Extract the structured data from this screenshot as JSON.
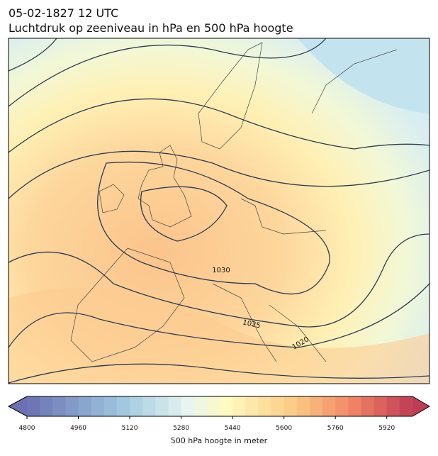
{
  "header": {
    "date": "05-02-1827 12 UTC",
    "title": "Luchtdruk op zeeniveau in hPa en 500 hPa hoogte"
  },
  "map": {
    "contour_labels": [
      1030,
      1025,
      1020
    ]
  },
  "colorbar": {
    "range": [
      4800,
      6000
    ],
    "ticks": [
      4800,
      4960,
      5120,
      5280,
      5440,
      5600,
      5760,
      5920
    ],
    "label": "500 hPa hoogte in meter"
  }
}
